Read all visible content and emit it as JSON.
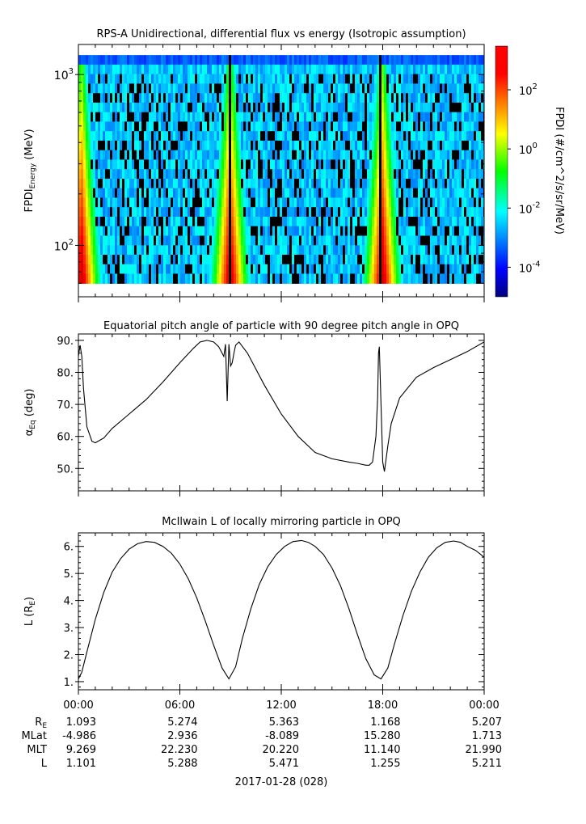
{
  "figure": {
    "date_label": "2017-01-28 (028)",
    "time_ticks": [
      "00:00",
      "06:00",
      "12:00",
      "18:00",
      "00:00"
    ],
    "ephemeris": {
      "rows": [
        {
          "label": "R",
          "sub": "E",
          "values": [
            "1.093",
            "5.274",
            "5.363",
            "1.168",
            "5.207"
          ]
        },
        {
          "label": "MLat",
          "sub": "",
          "values": [
            "-4.986",
            "2.936",
            "-8.089",
            "15.280",
            "1.713"
          ]
        },
        {
          "label": "MLT",
          "sub": "",
          "values": [
            "9.269",
            "22.230",
            "20.220",
            "11.140",
            "21.990"
          ]
        },
        {
          "label": "L",
          "sub": "",
          "values": [
            "1.101",
            "5.288",
            "5.471",
            "1.255",
            "5.211"
          ]
        }
      ]
    }
  },
  "chart_data": [
    {
      "type": "heatmap",
      "title": "RPS-A Unidirectional, differential flux vs energy (Isotropic assumption)",
      "xlabel": "",
      "ylabel_main": "FPDI",
      "ylabel_sub": "Energy",
      "ylabel_unit": " (MeV)",
      "yscale": "log",
      "ylim": [
        50,
        1500
      ],
      "energy_range": [
        60,
        1300
      ],
      "y_ticks": [
        {
          "base": "10",
          "exp": "2",
          "value": 100
        },
        {
          "base": "10",
          "exp": "3",
          "value": 1000
        }
      ],
      "colorbar": {
        "label": "FPDI (#/cm^2/s/sr/MeV)",
        "scale": "log",
        "range": [
          1e-05,
          3000
        ],
        "ticks": [
          {
            "base": "10",
            "exp": "2",
            "value": 100
          },
          {
            "base": "10",
            "exp": "0",
            "value": 1
          },
          {
            "base": "10",
            "exp": "-2",
            "value": 0.01
          },
          {
            "base": "10",
            "exp": "-4",
            "value": 0.0001
          }
        ]
      },
      "xlim_hours": [
        0,
        24
      ],
      "data_gaps_hours": [
        8.85,
        17.8
      ],
      "description_features": {
        "high_flux_low_energy_hours": [
          0.1,
          8.9,
          17.9
        ]
      }
    },
    {
      "type": "line",
      "title": "Equatorial pitch angle of particle with 90 degree pitch angle in OPQ",
      "ylabel_main": "α",
      "ylabel_sub": "Eq",
      "ylabel_unit": " (deg)",
      "ylim": [
        43,
        92
      ],
      "y_ticks": [
        "50.",
        "60.",
        "70.",
        "80.",
        "90."
      ],
      "y_tick_values": [
        50,
        60,
        70,
        80,
        90
      ],
      "xlim_hours": [
        0,
        24
      ],
      "x": [
        0.0,
        0.1,
        0.2,
        0.3,
        0.5,
        0.8,
        1.0,
        1.5,
        2.0,
        3.0,
        4.0,
        5.0,
        6.0,
        6.8,
        7.2,
        7.6,
        8.0,
        8.3,
        8.5,
        8.6,
        8.7,
        8.8,
        8.9,
        9.0,
        9.1,
        9.2,
        9.3,
        9.5,
        10.0,
        11.0,
        12.0,
        13.0,
        14.0,
        15.0,
        16.0,
        16.5,
        17.0,
        17.2,
        17.4,
        17.6,
        17.7,
        17.75,
        17.8,
        17.9,
        18.0,
        18.1,
        18.3,
        18.5,
        19.0,
        20.0,
        21.0,
        22.0,
        23.0,
        24.0
      ],
      "y": [
        85,
        88.5,
        85,
        75,
        63,
        58.5,
        58,
        59.5,
        62.5,
        67,
        71.5,
        77,
        83,
        87.5,
        89.5,
        90,
        89.5,
        88,
        86,
        85,
        88.8,
        71,
        88.8,
        82,
        83,
        86,
        88.5,
        89.5,
        86,
        76,
        67,
        60,
        55,
        53,
        52,
        51.6,
        51,
        51,
        52,
        60,
        72,
        86,
        88,
        70,
        52,
        49,
        57,
        64,
        72,
        78.5,
        81.5,
        84,
        86.5,
        89.5
      ]
    },
    {
      "type": "line",
      "title": "McIlwain L of locally mirroring particle in OPQ",
      "ylabel_main": "L (R",
      "ylabel_sub": "E",
      "ylabel_unit": ")",
      "ylim": [
        0.7,
        6.5
      ],
      "y_ticks": [
        "1.",
        "2.",
        "3.",
        "4.",
        "5.",
        "6."
      ],
      "y_tick_values": [
        1,
        2,
        3,
        4,
        5,
        6
      ],
      "xlim_hours": [
        0,
        24
      ],
      "x": [
        0.0,
        0.2,
        0.5,
        1.0,
        1.5,
        2.0,
        2.5,
        3.0,
        3.5,
        4.0,
        4.5,
        5.0,
        5.5,
        6.0,
        6.5,
        7.0,
        7.5,
        8.0,
        8.5,
        8.9,
        9.3,
        9.7,
        10.2,
        10.7,
        11.2,
        11.7,
        12.2,
        12.7,
        13.2,
        13.6,
        14.0,
        14.5,
        15.0,
        15.5,
        16.0,
        16.5,
        17.0,
        17.5,
        17.9,
        18.3,
        18.7,
        19.2,
        19.7,
        20.2,
        20.7,
        21.2,
        21.7,
        22.2,
        22.6,
        23.0,
        23.5,
        24.0
      ],
      "y": [
        1.1,
        1.35,
        2.1,
        3.3,
        4.3,
        5.05,
        5.55,
        5.9,
        6.1,
        6.18,
        6.15,
        6.0,
        5.75,
        5.35,
        4.8,
        4.1,
        3.25,
        2.35,
        1.5,
        1.1,
        1.55,
        2.6,
        3.7,
        4.6,
        5.25,
        5.7,
        6.0,
        6.18,
        6.22,
        6.15,
        6.0,
        5.7,
        5.2,
        4.55,
        3.7,
        2.75,
        1.85,
        1.25,
        1.1,
        1.5,
        2.4,
        3.45,
        4.35,
        5.05,
        5.6,
        5.95,
        6.15,
        6.2,
        6.15,
        6.0,
        5.85,
        5.6
      ]
    }
  ]
}
